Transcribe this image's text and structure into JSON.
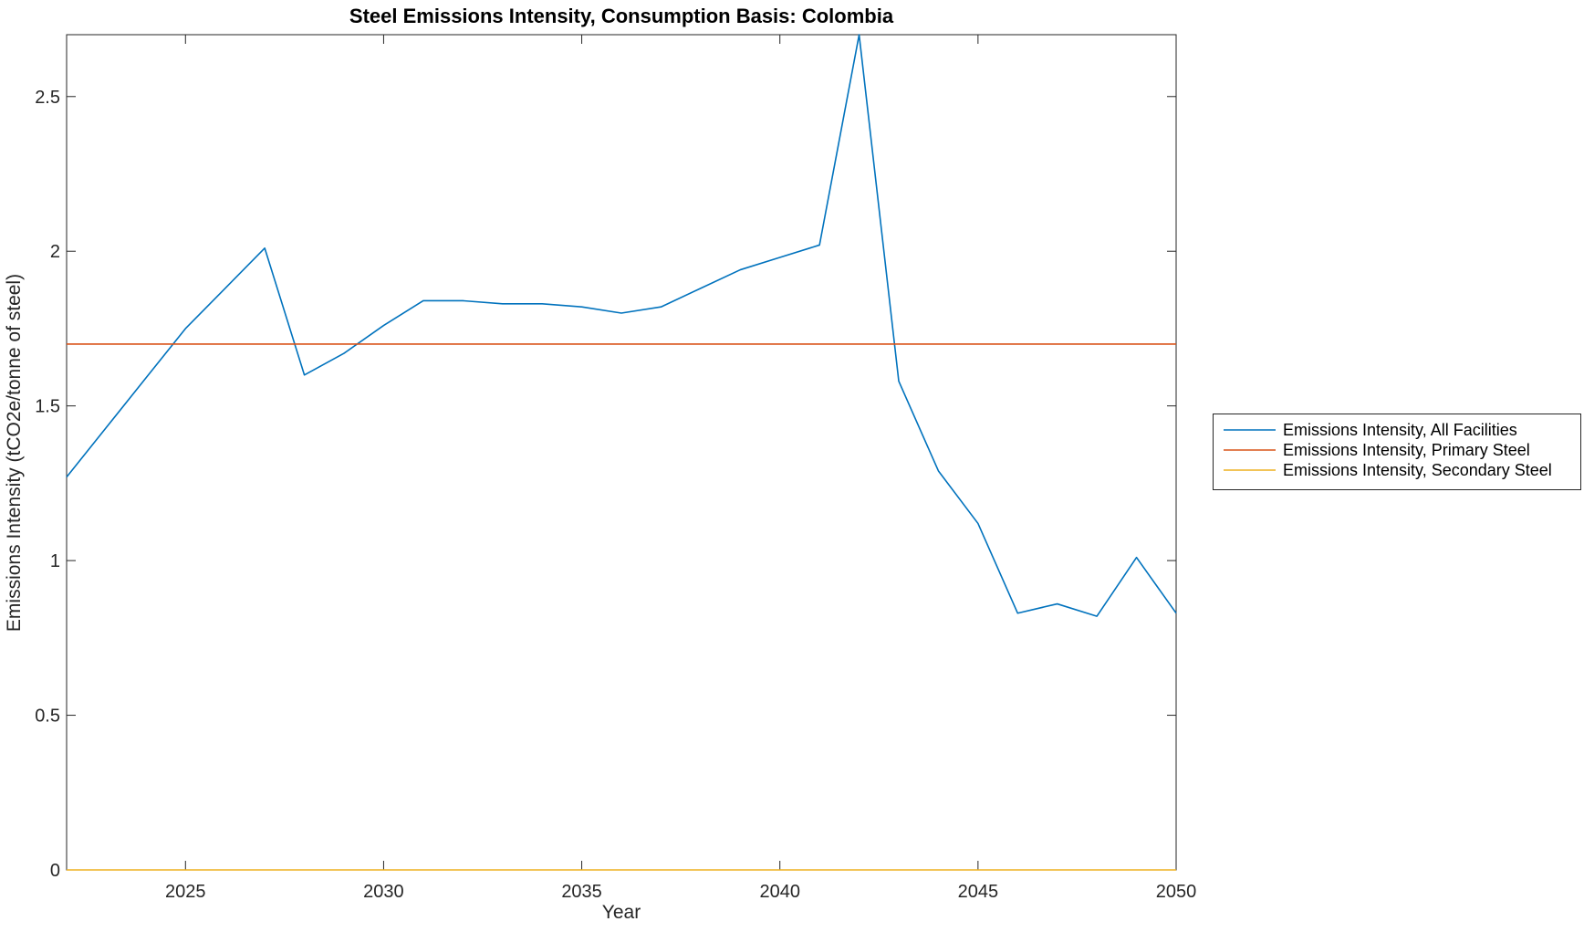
{
  "figure": {
    "background": "#ffffff",
    "axis_color": "#262626"
  },
  "chart_data": {
    "type": "line",
    "title": "Steel Emissions Intensity, Consumption Basis: Colombia",
    "xlabel": "Year",
    "ylabel": "Emissions Intensity (tCO2e/tonne of steel)",
    "xlim": [
      2022,
      2050
    ],
    "ylim": [
      0,
      2.7
    ],
    "xticks": [
      2025,
      2030,
      2035,
      2040,
      2045,
      2050
    ],
    "yticks": [
      0,
      0.5,
      1,
      1.5,
      2,
      2.5
    ],
    "grid": false,
    "legend": {
      "position": "right-outside",
      "border_color": "#262626",
      "background": "#ffffff"
    },
    "x": [
      2022,
      2023,
      2024,
      2025,
      2026,
      2027,
      2028,
      2029,
      2030,
      2031,
      2032,
      2033,
      2034,
      2035,
      2036,
      2037,
      2038,
      2039,
      2040,
      2041,
      2042,
      2043,
      2044,
      2045,
      2046,
      2047,
      2048,
      2049,
      2050
    ],
    "series": [
      {
        "name": "Emissions Intensity, All Facilities",
        "color": "#0072BD",
        "values": [
          1.27,
          1.43,
          1.59,
          1.75,
          1.88,
          2.01,
          1.6,
          1.67,
          1.76,
          1.84,
          1.84,
          1.83,
          1.83,
          1.82,
          1.8,
          1.82,
          1.88,
          1.94,
          1.98,
          2.02,
          2.7,
          1.58,
          1.29,
          1.12,
          0.83,
          0.86,
          0.82,
          1.01,
          0.83
        ]
      },
      {
        "name": "Emissions Intensity, Primary Steel",
        "color": "#D95319",
        "constant": 1.7
      },
      {
        "name": "Emissions Intensity, Secondary Steel",
        "color": "#EDB120",
        "constant": 0
      }
    ]
  }
}
